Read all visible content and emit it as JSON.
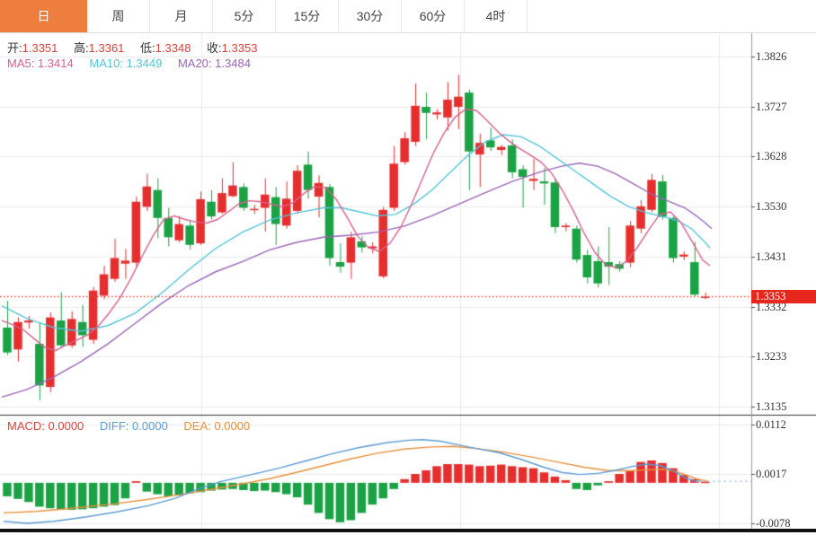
{
  "tab_bar": {
    "tabs": [
      {
        "label": "日",
        "active": true
      },
      {
        "label": "周",
        "active": false
      },
      {
        "label": "月",
        "active": false
      },
      {
        "label": "5分",
        "active": false
      },
      {
        "label": "15分",
        "active": false
      },
      {
        "label": "30分",
        "active": false
      },
      {
        "label": "60分",
        "active": false
      },
      {
        "label": "4时",
        "active": false
      }
    ]
  },
  "info_bar": {
    "open_label": "开:",
    "open_value": "1.3351",
    "high_label": "高:",
    "high_value": "1.3361",
    "low_label": "低:",
    "low_value": "1.3348",
    "close_label": "收:",
    "close_value": "1.3353"
  },
  "ma_bar": {
    "ma5_label": "MA5:",
    "ma5_value": "1.3414",
    "ma10_label": "MA10:",
    "ma10_value": "1.3449",
    "ma20_label": "MA20:",
    "ma20_value": "1.3484"
  },
  "macd_bar": {
    "macd_label": "MACD:",
    "macd_value": "0.0000",
    "diff_label": "DIFF:",
    "diff_value": "0.0000",
    "dea_label": "DEA:",
    "dea_value": "0.0000"
  },
  "price_axis": {
    "labels": [
      "1.3826",
      "1.3727",
      "1.3628",
      "1.3530",
      "1.3431",
      "1.3332",
      "1.3233",
      "1.3135"
    ],
    "current_price_tag": "1.3353"
  },
  "macd_axis": {
    "labels": [
      "0.0112",
      "0.0017",
      "-0.0078"
    ]
  },
  "colors": {
    "up": "#e62e2e",
    "down": "#1ba245",
    "ma5": "#d7608c",
    "ma10": "#54c3d8",
    "ma20": "#9a64b8",
    "diff": "#5b9bd5",
    "dea": "#e8913c",
    "price_tag_bg": "#e8271c",
    "active_tab_bg": "#ee7e3e",
    "grid": "#eaeaea",
    "axis_line": "#9a9a9a",
    "divider": "#333333",
    "dotted_line": "#e24a3a",
    "macd_label": "#d9453c",
    "value_red": "#d9453c"
  },
  "chart_data": {
    "type": "candlestick+macd",
    "title": "",
    "price_axis_top": 1.3826,
    "price_axis_step": 0.00985,
    "macd_axis_top": 0.0112,
    "macd_axis_step": 0.0095,
    "current_price": 1.3353,
    "candles": [
      [
        1.3292,
        1.3345,
        1.3238,
        1.3243
      ],
      [
        1.3249,
        1.3312,
        1.3225,
        1.3303
      ],
      [
        1.3302,
        1.3315,
        1.329,
        1.3306
      ],
      [
        1.326,
        1.3302,
        1.3149,
        1.3178
      ],
      [
        1.3175,
        1.3322,
        1.3165,
        1.3312
      ],
      [
        1.3306,
        1.3362,
        1.3252,
        1.3257
      ],
      [
        1.3257,
        1.3324,
        1.3252,
        1.3309
      ],
      [
        1.3303,
        1.3337,
        1.3254,
        1.3277
      ],
      [
        1.3268,
        1.3372,
        1.326,
        1.3365
      ],
      [
        1.3355,
        1.3414,
        1.3348,
        1.3397
      ],
      [
        1.3388,
        1.3467,
        1.3382,
        1.3429
      ],
      [
        1.3418,
        1.3447,
        1.3388,
        1.3424
      ],
      [
        1.342,
        1.355,
        1.3411,
        1.354
      ],
      [
        1.353,
        1.3595,
        1.3522,
        1.357
      ],
      [
        1.3563,
        1.3586,
        1.3468,
        1.3508
      ],
      [
        1.3508,
        1.3528,
        1.3452,
        1.347
      ],
      [
        1.3464,
        1.3512,
        1.346,
        1.3496
      ],
      [
        1.3493,
        1.3502,
        1.3446,
        1.3455
      ],
      [
        1.3458,
        1.356,
        1.3455,
        1.3545
      ],
      [
        1.354,
        1.3563,
        1.3505,
        1.3511
      ],
      [
        1.3519,
        1.3586,
        1.3516,
        1.3557
      ],
      [
        1.3551,
        1.3618,
        1.3549,
        1.3572
      ],
      [
        1.3569,
        1.3576,
        1.3522,
        1.3528
      ],
      [
        1.3524,
        1.3534,
        1.3516,
        1.3526
      ],
      [
        1.3528,
        1.3586,
        1.3481,
        1.3554
      ],
      [
        1.3549,
        1.3569,
        1.3455,
        1.3496
      ],
      [
        1.3493,
        1.358,
        1.3487,
        1.3546
      ],
      [
        1.3522,
        1.3612,
        1.3516,
        1.3601
      ],
      [
        1.3613,
        1.3639,
        1.3546,
        1.3563
      ],
      [
        1.355,
        1.3592,
        1.3509,
        1.3577
      ],
      [
        1.3569,
        1.3575,
        1.3414,
        1.3429
      ],
      [
        1.3421,
        1.3458,
        1.34,
        1.3412
      ],
      [
        1.342,
        1.3481,
        1.3388,
        1.347
      ],
      [
        1.3462,
        1.3472,
        1.344,
        1.345
      ],
      [
        1.3448,
        1.346,
        1.3438,
        1.3452
      ],
      [
        1.3393,
        1.353,
        1.3389,
        1.3524
      ],
      [
        1.3528,
        1.365,
        1.3522,
        1.3615
      ],
      [
        1.3618,
        1.3677,
        1.3613,
        1.3665
      ],
      [
        1.3658,
        1.3773,
        1.365,
        1.3729
      ],
      [
        1.3727,
        1.3755,
        1.3663,
        1.3715
      ],
      [
        1.3712,
        1.3722,
        1.3702,
        1.3716
      ],
      [
        1.3706,
        1.3776,
        1.368,
        1.3741
      ],
      [
        1.3727,
        1.379,
        1.3683,
        1.3747
      ],
      [
        1.3755,
        1.3761,
        1.3563,
        1.3639
      ],
      [
        1.3633,
        1.3674,
        1.3569,
        1.3656
      ],
      [
        1.3661,
        1.3686,
        1.364,
        1.3647
      ],
      [
        1.3642,
        1.3652,
        1.3632,
        1.3648
      ],
      [
        1.3651,
        1.3663,
        1.3586,
        1.3598
      ],
      [
        1.3604,
        1.3612,
        1.3528,
        1.3589
      ],
      [
        1.3581,
        1.3624,
        1.3563,
        1.3585
      ],
      [
        1.358,
        1.3607,
        1.3534,
        1.3576
      ],
      [
        1.3578,
        1.3586,
        1.3478,
        1.349
      ],
      [
        1.349,
        1.3498,
        1.3482,
        1.3493
      ],
      [
        1.3487,
        1.3493,
        1.342,
        1.3426
      ],
      [
        1.3435,
        1.3445,
        1.3379,
        1.3391
      ],
      [
        1.3423,
        1.3452,
        1.3371,
        1.3379
      ],
      [
        1.3421,
        1.349,
        1.3376,
        1.3412
      ],
      [
        1.3417,
        1.3423,
        1.3402,
        1.3408
      ],
      [
        1.342,
        1.3502,
        1.3411,
        1.3493
      ],
      [
        1.3487,
        1.3543,
        1.3478,
        1.3531
      ],
      [
        1.3524,
        1.3595,
        1.3519,
        1.3583
      ],
      [
        1.358,
        1.3593,
        1.3505,
        1.351
      ],
      [
        1.3508,
        1.3512,
        1.342,
        1.3429
      ],
      [
        1.3432,
        1.3442,
        1.3425,
        1.3436
      ],
      [
        1.3421,
        1.3461,
        1.3354,
        1.3357
      ],
      [
        1.3351,
        1.3361,
        1.3348,
        1.3353
      ]
    ],
    "ma5_line": [
      [
        2,
        1.3306
      ],
      [
        14,
        1.3298
      ],
      [
        26,
        1.3288
      ],
      [
        38,
        1.327
      ],
      [
        50,
        1.3253
      ],
      [
        62,
        1.3247
      ],
      [
        74,
        1.3258
      ],
      [
        86,
        1.3268
      ],
      [
        98,
        1.3278
      ],
      [
        110,
        1.3296
      ],
      [
        122,
        1.3322
      ],
      [
        134,
        1.3352
      ],
      [
        146,
        1.339
      ],
      [
        158,
        1.3432
      ],
      [
        170,
        1.3472
      ],
      [
        182,
        1.3505
      ],
      [
        194,
        1.3512
      ],
      [
        206,
        1.3505
      ],
      [
        218,
        1.35
      ],
      [
        230,
        1.3498
      ],
      [
        242,
        1.3505
      ],
      [
        254,
        1.352
      ],
      [
        266,
        1.3536
      ],
      [
        278,
        1.3542
      ],
      [
        290,
        1.354
      ],
      [
        302,
        1.3535
      ],
      [
        314,
        1.353
      ],
      [
        326,
        1.3538
      ],
      [
        338,
        1.3556
      ],
      [
        350,
        1.357
      ],
      [
        362,
        1.3568
      ],
      [
        374,
        1.3545
      ],
      [
        386,
        1.351
      ],
      [
        398,
        1.3472
      ],
      [
        410,
        1.345
      ],
      [
        422,
        1.3442
      ],
      [
        434,
        1.3458
      ],
      [
        446,
        1.349
      ],
      [
        458,
        1.3535
      ],
      [
        470,
        1.3585
      ],
      [
        482,
        1.3635
      ],
      [
        494,
        1.3675
      ],
      [
        506,
        1.3706
      ],
      [
        518,
        1.3722
      ],
      [
        530,
        1.372
      ],
      [
        542,
        1.37
      ],
      [
        554,
        1.3678
      ],
      [
        566,
        1.366
      ],
      [
        578,
        1.3645
      ],
      [
        590,
        1.3632
      ],
      [
        602,
        1.3618
      ],
      [
        614,
        1.3596
      ],
      [
        626,
        1.3562
      ],
      [
        638,
        1.3522
      ],
      [
        650,
        1.3478
      ],
      [
        662,
        1.344
      ],
      [
        674,
        1.3416
      ],
      [
        686,
        1.341
      ],
      [
        698,
        1.3424
      ],
      [
        710,
        1.3452
      ],
      [
        722,
        1.3485
      ],
      [
        734,
        1.3515
      ],
      [
        746,
        1.352
      ],
      [
        758,
        1.3498
      ],
      [
        770,
        1.3462
      ],
      [
        782,
        1.3425
      ],
      [
        790,
        1.3414
      ]
    ],
    "ma10_line": [
      [
        2,
        1.3335
      ],
      [
        30,
        1.331
      ],
      [
        60,
        1.3292
      ],
      [
        90,
        1.3285
      ],
      [
        120,
        1.3296
      ],
      [
        150,
        1.332
      ],
      [
        180,
        1.336
      ],
      [
        210,
        1.3406
      ],
      [
        240,
        1.3448
      ],
      [
        270,
        1.348
      ],
      [
        300,
        1.3504
      ],
      [
        330,
        1.3518
      ],
      [
        360,
        1.3528
      ],
      [
        380,
        1.3528
      ],
      [
        400,
        1.352
      ],
      [
        420,
        1.3512
      ],
      [
        440,
        1.3515
      ],
      [
        460,
        1.3535
      ],
      [
        480,
        1.3562
      ],
      [
        500,
        1.3596
      ],
      [
        520,
        1.363
      ],
      [
        540,
        1.3658
      ],
      [
        560,
        1.3672
      ],
      [
        580,
        1.3668
      ],
      [
        600,
        1.365
      ],
      [
        620,
        1.3625
      ],
      [
        640,
        1.36
      ],
      [
        660,
        1.3575
      ],
      [
        680,
        1.355
      ],
      [
        700,
        1.353
      ],
      [
        720,
        1.3518
      ],
      [
        740,
        1.351
      ],
      [
        755,
        1.3502
      ],
      [
        770,
        1.3486
      ],
      [
        782,
        1.3465
      ],
      [
        790,
        1.3449
      ]
    ],
    "ma20_line": [
      [
        2,
        1.3155
      ],
      [
        30,
        1.317
      ],
      [
        60,
        1.3195
      ],
      [
        90,
        1.3225
      ],
      [
        120,
        1.326
      ],
      [
        150,
        1.33
      ],
      [
        180,
        1.334
      ],
      [
        210,
        1.3375
      ],
      [
        240,
        1.3402
      ],
      [
        270,
        1.3422
      ],
      [
        300,
        1.3445
      ],
      [
        330,
        1.346
      ],
      [
        360,
        1.347
      ],
      [
        390,
        1.3474
      ],
      [
        420,
        1.348
      ],
      [
        450,
        1.3492
      ],
      [
        480,
        1.3512
      ],
      [
        510,
        1.3535
      ],
      [
        540,
        1.3558
      ],
      [
        570,
        1.358
      ],
      [
        600,
        1.3598
      ],
      [
        625,
        1.361
      ],
      [
        645,
        1.3616
      ],
      [
        665,
        1.361
      ],
      [
        685,
        1.3595
      ],
      [
        705,
        1.3575
      ],
      [
        725,
        1.3555
      ],
      [
        745,
        1.354
      ],
      [
        762,
        1.3528
      ],
      [
        775,
        1.3512
      ],
      [
        785,
        1.3498
      ],
      [
        792,
        1.3487
      ]
    ],
    "macd_histogram": [
      -0.0026,
      -0.0031,
      -0.0037,
      -0.0046,
      -0.0049,
      -0.0052,
      -0.0052,
      -0.0051,
      -0.0049,
      -0.0046,
      -0.0043,
      -0.003,
      0.0003,
      -0.0017,
      -0.0022,
      -0.0026,
      -0.0024,
      -0.002,
      -0.0018,
      -0.0015,
      -0.0013,
      -0.0012,
      -0.0014,
      -0.0016,
      -0.0015,
      -0.0018,
      -0.0022,
      -0.0028,
      -0.0042,
      -0.0058,
      -0.007,
      -0.0076,
      -0.0072,
      -0.0058,
      -0.0042,
      -0.003,
      -0.0012,
      0.0007,
      0.0017,
      0.0024,
      0.0032,
      0.0036,
      0.0036,
      0.0035,
      0.0032,
      0.0033,
      0.0035,
      0.0032,
      0.003,
      0.0028,
      0.002,
      0.0012,
      0.0005,
      -0.0012,
      -0.0014,
      -0.0005,
      0.0003,
      0.0017,
      0.0023,
      0.004,
      0.0043,
      0.0038,
      0.0028,
      0.0015,
      0.0007,
      0.0002
    ],
    "diff_line": [
      [
        4,
        -0.0074
      ],
      [
        30,
        -0.0078
      ],
      [
        60,
        -0.0074
      ],
      [
        95,
        -0.0066
      ],
      [
        130,
        -0.0056
      ],
      [
        165,
        -0.0044
      ],
      [
        195,
        -0.003
      ],
      [
        220,
        -0.0012
      ],
      [
        245,
        0.0002
      ],
      [
        280,
        0.0016
      ],
      [
        310,
        0.0028
      ],
      [
        340,
        0.0042
      ],
      [
        370,
        0.0056
      ],
      [
        400,
        0.0068
      ],
      [
        430,
        0.0077
      ],
      [
        455,
        0.0082
      ],
      [
        470,
        0.0083
      ],
      [
        490,
        0.008
      ],
      [
        510,
        0.0073
      ],
      [
        530,
        0.0066
      ],
      [
        555,
        0.0058
      ],
      [
        580,
        0.0045
      ],
      [
        605,
        0.003
      ],
      [
        625,
        0.002
      ],
      [
        645,
        0.0016
      ],
      [
        665,
        0.0018
      ],
      [
        685,
        0.0024
      ],
      [
        705,
        0.0032
      ],
      [
        720,
        0.0036
      ],
      [
        735,
        0.0033
      ],
      [
        750,
        0.0022
      ],
      [
        762,
        0.001
      ],
      [
        772,
        0.0004
      ],
      [
        780,
        0.0003
      ]
    ],
    "dea_line": [
      [
        4,
        -0.0058
      ],
      [
        40,
        -0.0055
      ],
      [
        80,
        -0.0049
      ],
      [
        120,
        -0.0042
      ],
      [
        160,
        -0.0033
      ],
      [
        200,
        -0.0023
      ],
      [
        240,
        -0.0011
      ],
      [
        270,
        -0.0002
      ],
      [
        300,
        0.0008
      ],
      [
        330,
        0.002
      ],
      [
        360,
        0.0033
      ],
      [
        390,
        0.0046
      ],
      [
        420,
        0.0057
      ],
      [
        450,
        0.0065
      ],
      [
        480,
        0.0069
      ],
      [
        505,
        0.007
      ],
      [
        530,
        0.0066
      ],
      [
        560,
        0.0059
      ],
      [
        590,
        0.005
      ],
      [
        620,
        0.004
      ],
      [
        650,
        0.003
      ],
      [
        675,
        0.0024
      ],
      [
        700,
        0.0023
      ],
      [
        720,
        0.0025
      ],
      [
        738,
        0.0026
      ],
      [
        752,
        0.0022
      ],
      [
        765,
        0.0014
      ],
      [
        776,
        0.0007
      ],
      [
        788,
        0.0003
      ]
    ]
  }
}
